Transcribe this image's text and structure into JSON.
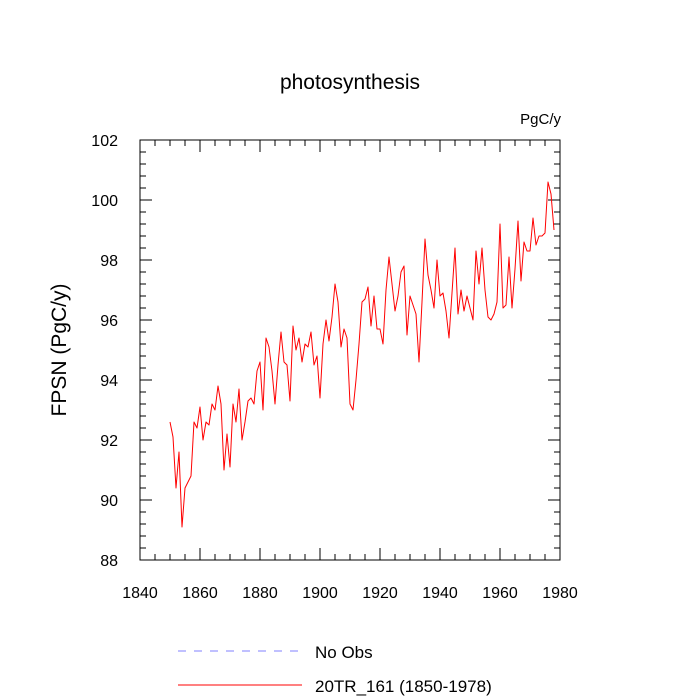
{
  "chart_data": {
    "type": "line",
    "title": "photosynthesis",
    "units_label": "PgC/y",
    "ylabel": "FPSN  (PgC/y)",
    "xlabel": "",
    "xlim": [
      1840,
      1980
    ],
    "ylim": [
      88,
      102
    ],
    "x_ticks": [
      1840,
      1860,
      1880,
      1900,
      1920,
      1940,
      1960,
      1980
    ],
    "y_ticks": [
      88,
      90,
      92,
      94,
      96,
      98,
      100,
      102
    ],
    "grid": false,
    "legend_position": "bottom",
    "series": [
      {
        "name": "No Obs",
        "color": "#8080ff",
        "dash": "dashed",
        "x": [],
        "values": []
      },
      {
        "name": "20TR_161 (1850-1978)",
        "color": "#ff0000",
        "dash": "solid",
        "x": [
          1850,
          1851,
          1852,
          1853,
          1854,
          1855,
          1856,
          1857,
          1858,
          1859,
          1860,
          1861,
          1862,
          1863,
          1864,
          1865,
          1866,
          1867,
          1868,
          1869,
          1870,
          1871,
          1872,
          1873,
          1874,
          1875,
          1876,
          1877,
          1878,
          1879,
          1880,
          1881,
          1882,
          1883,
          1884,
          1885,
          1886,
          1887,
          1888,
          1889,
          1890,
          1891,
          1892,
          1893,
          1894,
          1895,
          1896,
          1897,
          1898,
          1899,
          1900,
          1901,
          1902,
          1903,
          1904,
          1905,
          1906,
          1907,
          1908,
          1909,
          1910,
          1911,
          1912,
          1913,
          1914,
          1915,
          1916,
          1917,
          1918,
          1919,
          1920,
          1921,
          1922,
          1923,
          1924,
          1925,
          1926,
          1927,
          1928,
          1929,
          1930,
          1931,
          1932,
          1933,
          1934,
          1935,
          1936,
          1937,
          1938,
          1939,
          1940,
          1941,
          1942,
          1943,
          1944,
          1945,
          1946,
          1947,
          1948,
          1949,
          1950,
          1951,
          1952,
          1953,
          1954,
          1955,
          1956,
          1957,
          1958,
          1959,
          1960,
          1961,
          1962,
          1963,
          1964,
          1965,
          1966,
          1967,
          1968,
          1969,
          1970,
          1971,
          1972,
          1973,
          1974,
          1975,
          1976,
          1977,
          1978
        ],
        "values": [
          92.6,
          92.1,
          90.4,
          91.6,
          89.1,
          90.4,
          90.6,
          90.8,
          92.6,
          92.4,
          93.1,
          92.0,
          92.6,
          92.5,
          93.2,
          93.0,
          93.8,
          93.2,
          91.0,
          92.2,
          91.1,
          93.2,
          92.6,
          93.7,
          92.0,
          92.6,
          93.3,
          93.4,
          93.2,
          94.3,
          94.6,
          93.0,
          95.4,
          95.1,
          94.3,
          93.2,
          94.5,
          95.6,
          94.6,
          94.5,
          93.3,
          95.8,
          95.0,
          95.4,
          94.6,
          95.2,
          95.1,
          95.6,
          94.5,
          94.8,
          93.4,
          95.2,
          96.0,
          95.3,
          96.1,
          97.2,
          96.6,
          95.1,
          95.7,
          95.4,
          93.2,
          93.0,
          94.0,
          95.2,
          96.6,
          96.7,
          97.1,
          95.8,
          96.8,
          95.7,
          95.7,
          95.2,
          97.0,
          98.1,
          97.2,
          96.3,
          96.8,
          97.6,
          97.8,
          95.5,
          96.8,
          96.5,
          96.2,
          94.6,
          96.6,
          98.7,
          97.5,
          97.0,
          96.4,
          98.0,
          96.8,
          96.9,
          96.3,
          95.4,
          96.9,
          98.4,
          96.2,
          97.0,
          96.3,
          96.8,
          96.4,
          96.0,
          98.3,
          97.2,
          98.4,
          97.0,
          96.1,
          96.0,
          96.2,
          96.6,
          99.2,
          96.4,
          96.5,
          98.1,
          96.4,
          97.7,
          99.3,
          97.3,
          98.6,
          98.3,
          98.3,
          99.4,
          98.5,
          98.8,
          98.8,
          98.9,
          100.6,
          100.2,
          99.0
        ]
      }
    ]
  }
}
